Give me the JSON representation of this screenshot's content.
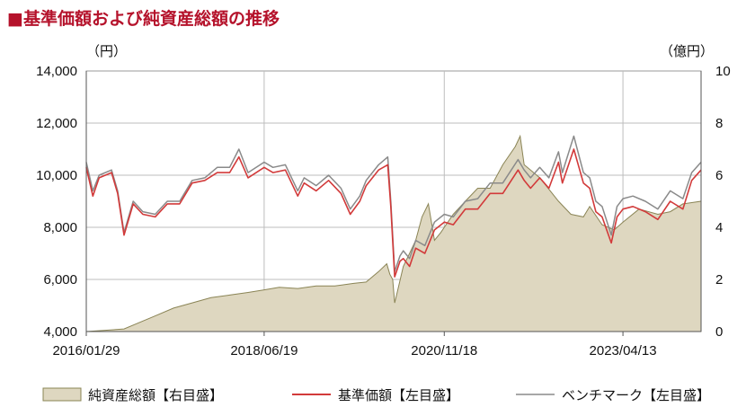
{
  "title": "基準価額および純資産総額の推移",
  "title_marker": "■",
  "colors": {
    "title": "#b5122b",
    "area_fill": "#ded7c0",
    "area_stroke": "#8a8455",
    "nav_line": "#d23a3a",
    "bench_line": "#8a8a8a",
    "grid": "#bdbdbd",
    "axis": "#555555"
  },
  "chart_data": {
    "type": "line",
    "title": "基準価額および純資産総額の推移",
    "y_left_unit": "（円）",
    "y_right_unit": "（億円）",
    "y_left_range": [
      4000,
      14000
    ],
    "y_right_range": [
      0,
      10
    ],
    "y_left_ticks": [
      "4,000",
      "6,000",
      "8,000",
      "10,000",
      "12,000",
      "14,000"
    ],
    "y_right_ticks": [
      "0",
      "2",
      "4",
      "6",
      "8",
      "10"
    ],
    "x_tick_labels": [
      "2016/01/29",
      "2018/06/19",
      "2020/11/18",
      "2023/04/13"
    ],
    "x_range": [
      "2016-01-29",
      "2024-04-30"
    ],
    "grid": true,
    "legend_position": "bottom",
    "series": [
      {
        "name": "純資産総額【右目盛】",
        "axis": "right",
        "style": "area",
        "points": [
          [
            "2016-01-29",
            0.0
          ],
          [
            "2016-05-01",
            0.05
          ],
          [
            "2016-08-01",
            0.1
          ],
          [
            "2016-10-01",
            0.3
          ],
          [
            "2017-01-01",
            0.6
          ],
          [
            "2017-04-01",
            0.9
          ],
          [
            "2017-07-01",
            1.1
          ],
          [
            "2017-10-01",
            1.3
          ],
          [
            "2018-01-01",
            1.4
          ],
          [
            "2018-04-01",
            1.5
          ],
          [
            "2018-06-19",
            1.6
          ],
          [
            "2018-09-01",
            1.7
          ],
          [
            "2018-12-01",
            1.65
          ],
          [
            "2019-03-01",
            1.75
          ],
          [
            "2019-06-01",
            1.75
          ],
          [
            "2019-09-01",
            1.85
          ],
          [
            "2019-11-01",
            1.9
          ],
          [
            "2020-01-01",
            2.3
          ],
          [
            "2020-02-10",
            2.6
          ],
          [
            "2020-02-25",
            2.2
          ],
          [
            "2020-03-10",
            2.0
          ],
          [
            "2020-03-20",
            1.1
          ],
          [
            "2020-04-01",
            1.5
          ],
          [
            "2020-05-01",
            2.5
          ],
          [
            "2020-06-01",
            3.0
          ],
          [
            "2020-07-01",
            3.5
          ],
          [
            "2020-08-01",
            4.4
          ],
          [
            "2020-09-01",
            4.9
          ],
          [
            "2020-10-01",
            3.5
          ],
          [
            "2020-11-01",
            3.8
          ],
          [
            "2020-11-18",
            4.0
          ],
          [
            "2021-01-01",
            4.5
          ],
          [
            "2021-03-01",
            5.0
          ],
          [
            "2021-05-01",
            5.5
          ],
          [
            "2021-07-01",
            5.5
          ],
          [
            "2021-09-01",
            6.4
          ],
          [
            "2021-11-01",
            7.1
          ],
          [
            "2021-11-25",
            7.5
          ],
          [
            "2021-12-15",
            6.4
          ],
          [
            "2022-01-15",
            6.2
          ],
          [
            "2022-03-01",
            5.9
          ],
          [
            "2022-04-01",
            5.6
          ],
          [
            "2022-06-01",
            5.0
          ],
          [
            "2022-08-01",
            4.5
          ],
          [
            "2022-10-01",
            4.4
          ],
          [
            "2022-11-01",
            4.8
          ],
          [
            "2023-01-01",
            4.1
          ],
          [
            "2023-03-01",
            3.9
          ],
          [
            "2023-04-13",
            4.2
          ],
          [
            "2023-07-01",
            4.7
          ],
          [
            "2023-10-01",
            4.5
          ],
          [
            "2023-12-01",
            4.6
          ],
          [
            "2024-02-01",
            4.9
          ],
          [
            "2024-04-30",
            5.0
          ]
        ]
      },
      {
        "name": "基準価額【左目盛】",
        "axis": "left",
        "style": "line",
        "points": [
          [
            "2016-01-29",
            10300
          ],
          [
            "2016-03-01",
            9200
          ],
          [
            "2016-04-01",
            9900
          ],
          [
            "2016-06-01",
            10100
          ],
          [
            "2016-07-01",
            9300
          ],
          [
            "2016-08-01",
            7700
          ],
          [
            "2016-09-15",
            8900
          ],
          [
            "2016-11-01",
            8500
          ],
          [
            "2017-01-01",
            8400
          ],
          [
            "2017-03-01",
            8900
          ],
          [
            "2017-05-01",
            8900
          ],
          [
            "2017-07-01",
            9700
          ],
          [
            "2017-09-01",
            9800
          ],
          [
            "2017-11-01",
            10100
          ],
          [
            "2018-01-01",
            10100
          ],
          [
            "2018-02-15",
            10700
          ],
          [
            "2018-04-01",
            9900
          ],
          [
            "2018-06-19",
            10300
          ],
          [
            "2018-08-01",
            10100
          ],
          [
            "2018-10-01",
            10200
          ],
          [
            "2018-12-01",
            9200
          ],
          [
            "2019-01-01",
            9700
          ],
          [
            "2019-03-01",
            9400
          ],
          [
            "2019-05-01",
            9800
          ],
          [
            "2019-07-01",
            9300
          ],
          [
            "2019-08-15",
            8500
          ],
          [
            "2019-10-01",
            9000
          ],
          [
            "2019-11-01",
            9600
          ],
          [
            "2020-01-01",
            10200
          ],
          [
            "2020-02-15",
            10400
          ],
          [
            "2020-03-01",
            8800
          ],
          [
            "2020-03-20",
            6100
          ],
          [
            "2020-04-15",
            6700
          ],
          [
            "2020-05-01",
            6800
          ],
          [
            "2020-06-01",
            6500
          ],
          [
            "2020-07-01",
            7200
          ],
          [
            "2020-08-15",
            7000
          ],
          [
            "2020-10-01",
            7900
          ],
          [
            "2020-11-18",
            8200
          ],
          [
            "2021-01-01",
            8100
          ],
          [
            "2021-03-01",
            8700
          ],
          [
            "2021-05-01",
            8700
          ],
          [
            "2021-07-01",
            9300
          ],
          [
            "2021-09-01",
            9300
          ],
          [
            "2021-11-15",
            10200
          ],
          [
            "2021-12-15",
            9800
          ],
          [
            "2022-01-15",
            9500
          ],
          [
            "2022-03-01",
            9900
          ],
          [
            "2022-04-15",
            9500
          ],
          [
            "2022-06-01",
            10500
          ],
          [
            "2022-06-20",
            9700
          ],
          [
            "2022-08-15",
            11000
          ],
          [
            "2022-10-01",
            9700
          ],
          [
            "2022-11-01",
            9500
          ],
          [
            "2022-12-01",
            8600
          ],
          [
            "2023-01-01",
            8400
          ],
          [
            "2023-02-15",
            7400
          ],
          [
            "2023-03-15",
            8400
          ],
          [
            "2023-04-13",
            8700
          ],
          [
            "2023-06-01",
            8800
          ],
          [
            "2023-08-01",
            8600
          ],
          [
            "2023-10-01",
            8300
          ],
          [
            "2023-12-01",
            9000
          ],
          [
            "2024-02-01",
            8700
          ],
          [
            "2024-03-15",
            9800
          ],
          [
            "2024-04-30",
            10200
          ]
        ]
      },
      {
        "name": "ベンチマーク【左目盛】",
        "axis": "left",
        "style": "line",
        "points": [
          [
            "2016-01-29",
            10500
          ],
          [
            "2016-03-01",
            9400
          ],
          [
            "2016-04-01",
            10000
          ],
          [
            "2016-06-01",
            10200
          ],
          [
            "2016-07-01",
            9400
          ],
          [
            "2016-08-01",
            7800
          ],
          [
            "2016-09-15",
            9000
          ],
          [
            "2016-11-01",
            8600
          ],
          [
            "2017-01-01",
            8500
          ],
          [
            "2017-03-01",
            9000
          ],
          [
            "2017-05-01",
            9000
          ],
          [
            "2017-07-01",
            9800
          ],
          [
            "2017-09-01",
            9900
          ],
          [
            "2017-11-01",
            10300
          ],
          [
            "2018-01-01",
            10300
          ],
          [
            "2018-02-15",
            11000
          ],
          [
            "2018-04-01",
            10100
          ],
          [
            "2018-06-19",
            10500
          ],
          [
            "2018-08-01",
            10300
          ],
          [
            "2018-10-01",
            10400
          ],
          [
            "2018-12-01",
            9400
          ],
          [
            "2019-01-01",
            9900
          ],
          [
            "2019-03-01",
            9600
          ],
          [
            "2019-05-01",
            10000
          ],
          [
            "2019-07-01",
            9500
          ],
          [
            "2019-08-15",
            8700
          ],
          [
            "2019-10-01",
            9200
          ],
          [
            "2019-11-01",
            9800
          ],
          [
            "2020-01-01",
            10400
          ],
          [
            "2020-02-15",
            10700
          ],
          [
            "2020-03-01",
            9000
          ],
          [
            "2020-03-20",
            6300
          ],
          [
            "2020-04-15",
            6900
          ],
          [
            "2020-05-01",
            7100
          ],
          [
            "2020-06-01",
            6800
          ],
          [
            "2020-07-01",
            7500
          ],
          [
            "2020-08-15",
            7300
          ],
          [
            "2020-10-01",
            8200
          ],
          [
            "2020-11-18",
            8500
          ],
          [
            "2021-01-01",
            8400
          ],
          [
            "2021-03-01",
            9000
          ],
          [
            "2021-05-01",
            9100
          ],
          [
            "2021-07-01",
            9700
          ],
          [
            "2021-09-01",
            9700
          ],
          [
            "2021-11-15",
            10600
          ],
          [
            "2021-12-15",
            10200
          ],
          [
            "2022-01-15",
            9900
          ],
          [
            "2022-03-01",
            10300
          ],
          [
            "2022-04-15",
            9900
          ],
          [
            "2022-06-01",
            10900
          ],
          [
            "2022-06-20",
            10100
          ],
          [
            "2022-08-15",
            11500
          ],
          [
            "2022-10-01",
            10100
          ],
          [
            "2022-11-01",
            9900
          ],
          [
            "2022-12-01",
            9000
          ],
          [
            "2023-01-01",
            8800
          ],
          [
            "2023-02-15",
            7700
          ],
          [
            "2023-03-15",
            8800
          ],
          [
            "2023-04-13",
            9100
          ],
          [
            "2023-06-01",
            9200
          ],
          [
            "2023-08-01",
            9000
          ],
          [
            "2023-10-01",
            8700
          ],
          [
            "2023-12-01",
            9400
          ],
          [
            "2024-02-01",
            9100
          ],
          [
            "2024-03-15",
            10100
          ],
          [
            "2024-04-30",
            10500
          ]
        ]
      }
    ]
  }
}
